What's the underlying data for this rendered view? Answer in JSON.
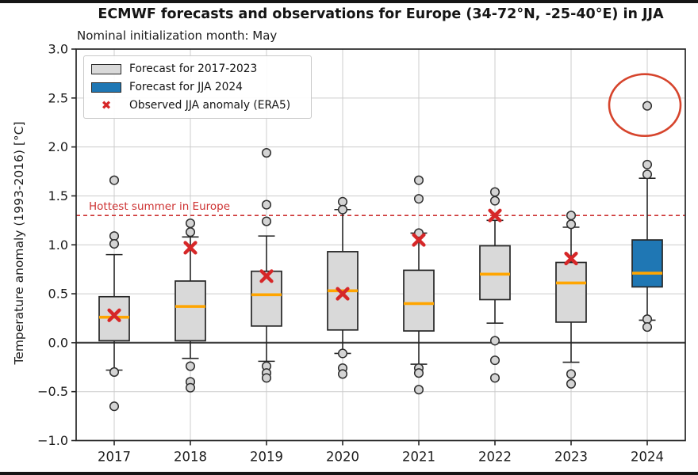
{
  "colors": {
    "box_gray_fill": "#d9d9d9",
    "box_blue_fill": "#1f77b4",
    "box_edge": "#262626",
    "median_orange": "#ffa500",
    "observed_x_red": "#d62728",
    "annotation_red": "#cd3232",
    "ellipse_red": "#d6442c",
    "grid_gray": "#cccccc",
    "zero_line": "#404040",
    "flier_fill": "#d4d4d4",
    "flier_edge": "#2e2e2e",
    "spine": "#262626",
    "background": "#ffffff"
  },
  "chart_data": {
    "type": "boxplot",
    "title": "ECMWF forecasts and observations for Europe (34-72°N, -25-40°E) in JJA",
    "subtitle": "Nominal initialization month: May",
    "ylabel": "Temperature anomaly (1993-2016) [°C]",
    "ylim": [
      -1.0,
      3.0
    ],
    "grid": true,
    "legend_position": "upper left",
    "y_ticks": [
      {
        "v": 3.0,
        "label": "3.0"
      },
      {
        "v": 2.5,
        "label": "2.5"
      },
      {
        "v": 2.0,
        "label": "2.0"
      },
      {
        "v": 1.5,
        "label": "1.5"
      },
      {
        "v": 1.0,
        "label": "1.0"
      },
      {
        "v": 0.5,
        "label": "0.5"
      },
      {
        "v": 0.0,
        "label": "0.0"
      },
      {
        "v": -0.5,
        "label": "−0.5"
      },
      {
        "v": -1.0,
        "label": "−1.0"
      }
    ],
    "categories": [
      "2017",
      "2018",
      "2019",
      "2020",
      "2021",
      "2022",
      "2023",
      "2024"
    ],
    "legend": [
      {
        "swatch": "gray-box",
        "label": "Forecast for 2017-2023"
      },
      {
        "swatch": "blue-box",
        "label": "Forecast for JJA 2024"
      },
      {
        "swatch": "red-x",
        "label": "Observed JJA anomaly (ERA5)"
      }
    ],
    "legend_x_glyph": "✖",
    "boxes": [
      {
        "year": "2017",
        "color": "gray",
        "whislo": -0.28,
        "q1": 0.02,
        "med": 0.26,
        "q3": 0.47,
        "whishi": 0.9,
        "fliers": [
          1.66,
          1.09,
          1.01,
          -0.3,
          -0.65
        ],
        "observed": 0.28
      },
      {
        "year": "2018",
        "color": "gray",
        "whislo": -0.16,
        "q1": 0.02,
        "med": 0.37,
        "q3": 0.63,
        "whishi": 1.08,
        "fliers": [
          1.22,
          1.13,
          -0.24,
          -0.4,
          -0.46
        ],
        "observed": 0.97
      },
      {
        "year": "2019",
        "color": "gray",
        "whislo": -0.19,
        "q1": 0.17,
        "med": 0.49,
        "q3": 0.73,
        "whishi": 1.09,
        "fliers": [
          1.94,
          1.41,
          1.24,
          -0.24,
          -0.31,
          -0.36
        ],
        "observed": 0.68
      },
      {
        "year": "2020",
        "color": "gray",
        "whislo": -0.11,
        "q1": 0.13,
        "med": 0.53,
        "q3": 0.93,
        "whishi": 1.36,
        "fliers": [
          1.44,
          1.36,
          -0.11,
          -0.26,
          -0.32
        ],
        "observed": 0.5
      },
      {
        "year": "2021",
        "color": "gray",
        "whislo": -0.22,
        "q1": 0.12,
        "med": 0.4,
        "q3": 0.74,
        "whishi": 1.12,
        "fliers": [
          1.66,
          1.47,
          1.12,
          -0.26,
          -0.31,
          -0.48
        ],
        "observed": 1.05
      },
      {
        "year": "2022",
        "color": "gray",
        "whislo": 0.2,
        "q1": 0.44,
        "med": 0.7,
        "q3": 0.99,
        "whishi": 1.25,
        "fliers": [
          1.54,
          1.45,
          0.02,
          -0.18,
          -0.36
        ],
        "observed": 1.3
      },
      {
        "year": "2023",
        "color": "gray",
        "whislo": -0.2,
        "q1": 0.21,
        "med": 0.61,
        "q3": 0.82,
        "whishi": 1.18,
        "fliers": [
          1.3,
          1.21,
          -0.32,
          -0.42
        ],
        "observed": 0.86
      },
      {
        "year": "2024",
        "color": "blue",
        "whislo": 0.23,
        "q1": 0.57,
        "med": 0.71,
        "q3": 1.05,
        "whishi": 1.68,
        "fliers": [
          2.42,
          1.82,
          1.72,
          0.24,
          0.16
        ],
        "observed": null
      }
    ],
    "annotation_line": {
      "label": "Hottest summer in Europe",
      "value": 1.3
    },
    "highlight_ellipse": {
      "year": "2024",
      "value": 2.42
    }
  }
}
